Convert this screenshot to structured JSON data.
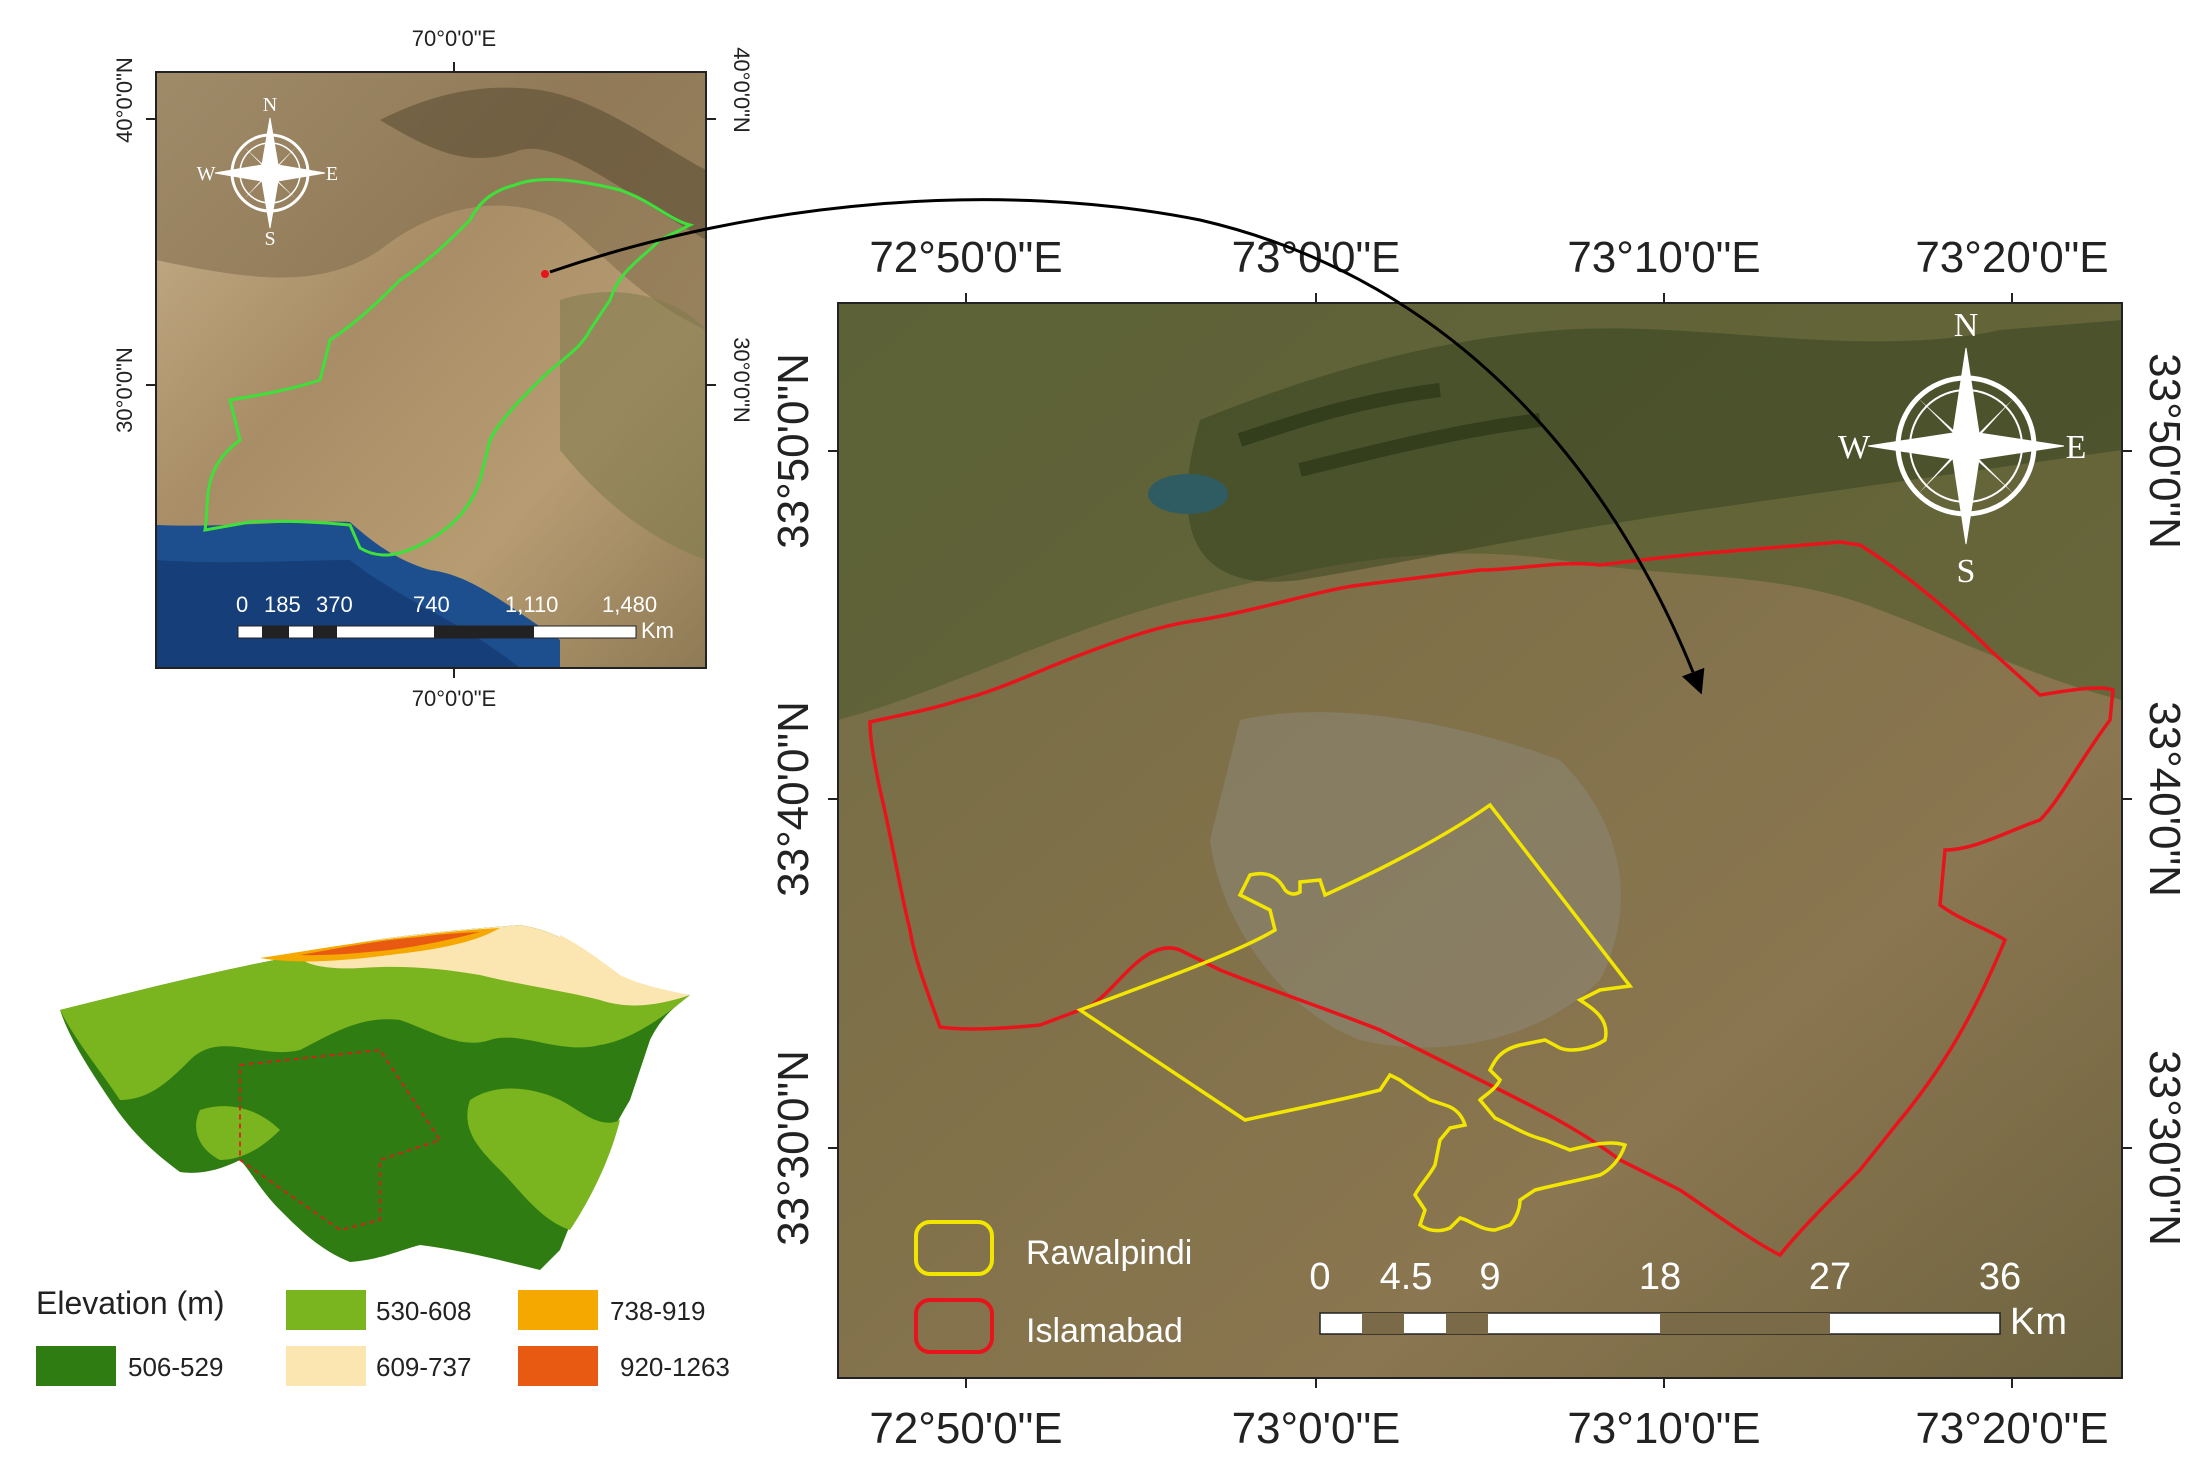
{
  "inset_map": {
    "top_label": "70°0'0\"E",
    "bottom_label": "70°0'0\"E",
    "left_labels": [
      "40°0'0\"N",
      "30°0'0\"N"
    ],
    "right_labels": [
      "40°0'0\"N",
      "30°0'0\"N"
    ],
    "scale_labels": [
      "0",
      "185",
      "370",
      "740",
      "1,110",
      "1,480"
    ],
    "scale_unit": "Km",
    "compass": {
      "n": "N",
      "e": "E",
      "s": "S",
      "w": "W"
    }
  },
  "main_map": {
    "top_labels": [
      "72°50'0\"E",
      "73°0'0\"E",
      "73°10'0\"E",
      "73°20'0\"E"
    ],
    "bottom_labels": [
      "72°50'0\"E",
      "73°0'0\"E",
      "73°10'0\"E",
      "73°20'0\"E"
    ],
    "left_labels": [
      "33°50'0\"N",
      "33°40'0\"N",
      "33°30'0\"N"
    ],
    "right_labels": [
      "33°50'0\"N",
      "33°40'0\"N",
      "33°30'0\"N"
    ],
    "scale_labels": [
      "0",
      "4.5",
      "9",
      "18",
      "27",
      "36"
    ],
    "scale_unit": "Km",
    "compass": {
      "n": "N",
      "e": "E",
      "s": "S",
      "w": "W"
    },
    "legend": [
      {
        "label": "Rawalpindi",
        "color": "#f2e600"
      },
      {
        "label": "Islamabad",
        "color": "#e8141c"
      }
    ]
  },
  "elevation": {
    "title": "Elevation (m)",
    "classes": [
      {
        "label": "506-529",
        "color": "#2f7d12"
      },
      {
        "label": "530-608",
        "color": "#7ab41e"
      },
      {
        "label": "609-737",
        "color": "#fbe6b2"
      },
      {
        "label": "738-919",
        "color": "#f5a800"
      },
      {
        "label": "920-1263",
        "color": "#e85a12"
      }
    ]
  }
}
